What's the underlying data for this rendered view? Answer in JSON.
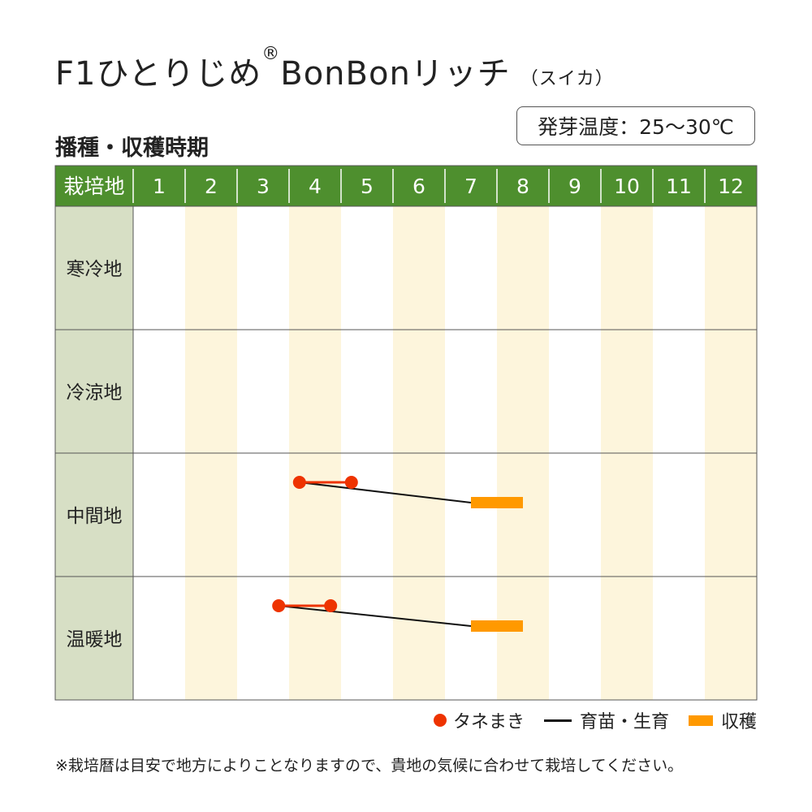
{
  "header": {
    "title": "F1ひとりじめ",
    "title_mark": "®",
    "title_variety": "BonBonリッチ",
    "title_sub": "（スイカ）",
    "section_label": "播種・収穫時期",
    "germination_temp": "発芽温度：25～30℃"
  },
  "chart_data": {
    "type": "table",
    "columns_header": "栽培地",
    "months": [
      "1",
      "2",
      "3",
      "4",
      "5",
      "6",
      "7",
      "8",
      "9",
      "10",
      "11",
      "12"
    ],
    "regions": [
      {
        "name": "寒冷地",
        "sowing": null,
        "harvest": null
      },
      {
        "name": "冷涼地",
        "sowing": null,
        "harvest": null
      },
      {
        "name": "中間地",
        "sowing": [
          4.2,
          5.2
        ],
        "harvest": [
          7.5,
          8.5
        ]
      },
      {
        "name": "温暖地",
        "sowing": [
          3.8,
          4.8
        ],
        "harvest": [
          7.5,
          8.5
        ]
      }
    ],
    "legend": [
      {
        "key": "sowing",
        "label": "タネまき",
        "color": "#ee3300"
      },
      {
        "key": "nursery",
        "label": "育苗・生育",
        "color": "#111111"
      },
      {
        "key": "harvest",
        "label": "収穫",
        "color": "#ff9900"
      }
    ],
    "colors": {
      "header_bg": "#4e8f2e",
      "region_bg": "#d7dfc5",
      "stripe": "#fdf5dc",
      "grid": "#555555"
    }
  },
  "footnote": "※栽培暦は目安で地方によりことなりますので、貴地の気候に合わせて栽培してください。"
}
